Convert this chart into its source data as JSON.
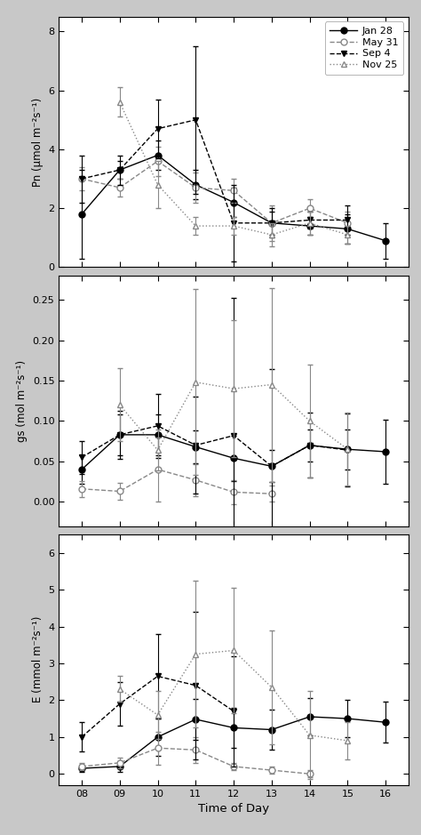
{
  "x": [
    8,
    9,
    10,
    11,
    12,
    13,
    14,
    15,
    16
  ],
  "pn": {
    "jan28": [
      1.8,
      3.3,
      3.8,
      2.8,
      2.2,
      1.5,
      1.4,
      1.3,
      0.9
    ],
    "may31": [
      3.0,
      2.7,
      3.6,
      2.7,
      2.6,
      1.5,
      2.0,
      1.5,
      null
    ],
    "sep4": [
      3.0,
      3.3,
      4.7,
      5.0,
      1.5,
      1.5,
      1.6,
      1.6,
      null
    ],
    "nov25": [
      null,
      5.6,
      2.8,
      1.4,
      1.4,
      1.1,
      1.5,
      1.1,
      null
    ]
  },
  "pn_err": {
    "jan28": [
      1.5,
      0.3,
      0.5,
      0.5,
      0.5,
      0.4,
      0.3,
      0.5,
      0.6
    ],
    "may31": [
      0.4,
      0.3,
      0.5,
      0.5,
      0.4,
      0.6,
      0.3,
      0.4,
      null
    ],
    "sep4": [
      0.8,
      0.5,
      1.0,
      2.5,
      1.3,
      0.5,
      0.3,
      0.5,
      null
    ],
    "nov25": [
      null,
      0.5,
      0.8,
      0.3,
      0.3,
      0.4,
      0.4,
      0.3,
      null
    ]
  },
  "gs": {
    "jan28": [
      0.04,
      0.083,
      0.083,
      0.068,
      0.054,
      0.044,
      0.07,
      0.065,
      0.062
    ],
    "may31": [
      0.016,
      0.013,
      0.04,
      0.027,
      0.012,
      0.01,
      null,
      null,
      null
    ],
    "sep4": [
      0.055,
      0.083,
      0.094,
      0.07,
      0.082,
      0.044,
      0.07,
      0.064,
      null
    ],
    "nov25": [
      null,
      0.12,
      0.064,
      0.148,
      0.14,
      0.145,
      0.1,
      0.065,
      null
    ]
  },
  "gs_err": {
    "jan28": [
      0.018,
      0.025,
      0.025,
      0.02,
      0.028,
      0.02,
      0.02,
      0.025,
      0.04
    ],
    "may31": [
      0.01,
      0.01,
      0.04,
      0.02,
      0.015,
      0.01,
      null,
      null,
      null
    ],
    "sep4": [
      0.02,
      0.03,
      0.04,
      0.06,
      0.17,
      0.12,
      0.04,
      0.045,
      null
    ],
    "nov25": [
      null,
      0.045,
      0.025,
      0.115,
      0.085,
      0.12,
      0.07,
      0.045,
      null
    ]
  },
  "E": {
    "jan28": [
      0.15,
      0.2,
      1.0,
      1.48,
      1.25,
      1.2,
      1.55,
      1.5,
      1.4
    ],
    "may31": [
      0.2,
      0.3,
      0.7,
      0.65,
      0.2,
      0.1,
      0.0,
      null,
      null
    ],
    "sep4": [
      1.0,
      1.9,
      2.65,
      2.4,
      1.7,
      null,
      null,
      null,
      null
    ],
    "nov25": [
      null,
      2.3,
      1.6,
      3.25,
      3.35,
      2.35,
      1.05,
      0.9,
      null
    ]
  },
  "E_err": {
    "jan28": [
      0.1,
      0.15,
      0.5,
      0.55,
      0.55,
      0.55,
      0.5,
      0.5,
      0.55
    ],
    "may31": [
      0.1,
      0.15,
      0.45,
      0.35,
      0.1,
      0.1,
      0.1,
      null,
      null
    ],
    "sep4": [
      0.4,
      0.6,
      1.15,
      2.0,
      1.5,
      null,
      null,
      null,
      null
    ],
    "nov25": [
      null,
      0.35,
      0.65,
      2.0,
      1.7,
      1.55,
      1.2,
      0.5,
      null
    ]
  },
  "ylim_pn": [
    0,
    8.5
  ],
  "ylim_gs": [
    -0.03,
    0.28
  ],
  "ylim_E": [
    -0.3,
    6.5
  ],
  "yticks_pn": [
    0,
    2,
    4,
    6,
    8
  ],
  "yticks_gs": [
    0.0,
    0.05,
    0.1,
    0.15,
    0.2,
    0.25
  ],
  "yticks_E": [
    0,
    1,
    2,
    3,
    4,
    5,
    6
  ],
  "ylabel_pn": "Pn (μmol m⁻²s⁻¹)",
  "ylabel_gs": "gs (mol m⁻²s⁻¹)",
  "ylabel_E": "E (mmol m⁻²s⁻¹)",
  "xlabel": "Time of Day",
  "xtick_labels": [
    "08",
    "09",
    "10",
    "11",
    "12",
    "13",
    "14",
    "15",
    "16"
  ],
  "color_black": "#000000",
  "color_gray": "#888888",
  "fig_bg": "#c8c8c8"
}
